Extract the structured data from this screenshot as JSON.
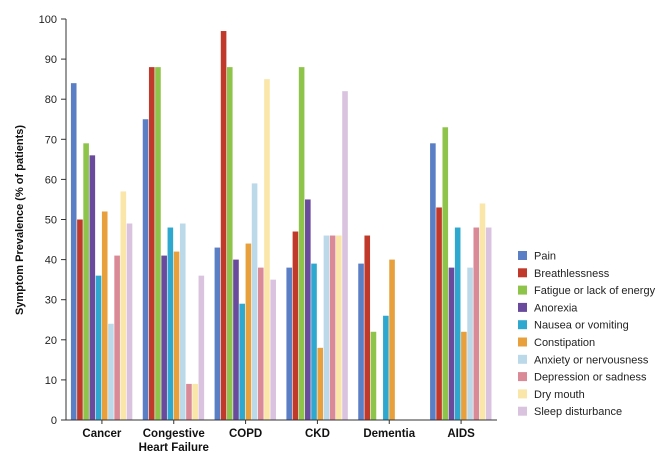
{
  "chart_data": {
    "type": "bar",
    "title": "",
    "xlabel": "",
    "ylabel": "Symptom Prevalence (% of patients)",
    "ylim": [
      0,
      100
    ],
    "yticks": [
      0,
      10,
      20,
      30,
      40,
      50,
      60,
      70,
      80,
      90,
      100
    ],
    "grid": false,
    "legend_position": "right",
    "categories": [
      [
        "Cancer"
      ],
      [
        "Congestive",
        "Heart Failure"
      ],
      [
        "COPD"
      ],
      [
        "CKD"
      ],
      [
        "Dementia"
      ],
      [
        "AIDS"
      ]
    ],
    "series": [
      {
        "name": "Pain",
        "color": "#5b7fc4",
        "values": [
          84,
          75,
          43,
          38,
          39,
          69
        ]
      },
      {
        "name": "Breathlessness",
        "color": "#c0392b",
        "values": [
          50,
          88,
          97,
          47,
          46,
          53
        ]
      },
      {
        "name": "Fatigue or lack of energy",
        "color": "#8fc44a",
        "values": [
          69,
          88,
          88,
          88,
          22,
          73
        ]
      },
      {
        "name": "Anorexia",
        "color": "#6a4a9c",
        "values": [
          66,
          41,
          40,
          55,
          null,
          38
        ]
      },
      {
        "name": "Nausea or vomiting",
        "color": "#2fa8d0",
        "values": [
          36,
          48,
          29,
          39,
          26,
          48
        ]
      },
      {
        "name": "Constipation",
        "color": "#e8a03c",
        "values": [
          52,
          42,
          44,
          18,
          40,
          22
        ]
      },
      {
        "name": "Anxiety or nervousness",
        "color": "#bcd9ea",
        "values": [
          24,
          49,
          59,
          46,
          null,
          38
        ]
      },
      {
        "name": "Depression or sadness",
        "color": "#d98a96",
        "values": [
          41,
          9,
          38,
          46,
          null,
          48
        ]
      },
      {
        "name": "Dry mouth",
        "color": "#f9e6a8",
        "values": [
          57,
          9,
          85,
          46,
          null,
          54
        ]
      },
      {
        "name": "Sleep disturbance",
        "color": "#d9c3df",
        "values": [
          49,
          36,
          35,
          82,
          null,
          48
        ]
      }
    ]
  }
}
